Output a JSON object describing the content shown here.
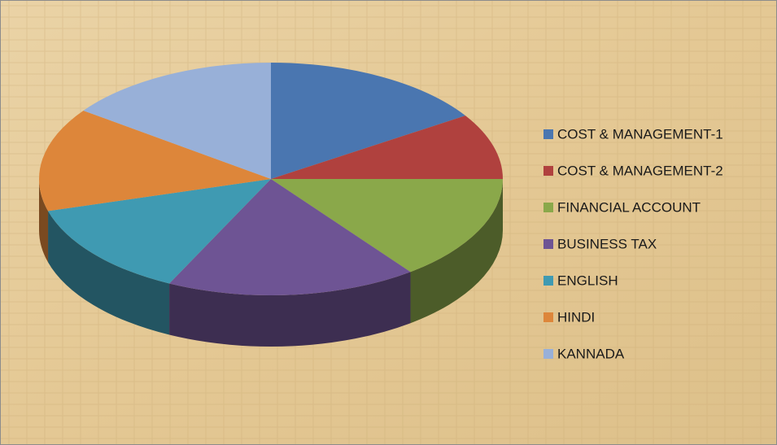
{
  "chart_data": {
    "type": "pie",
    "pie_style": "3d",
    "categories": [
      "COST & MANAGEMENT-1",
      "COST & MANAGEMENT-2",
      "FINANCIAL ACCOUNT",
      "BUSINESS TAX",
      "ENGLISH",
      "HINDI",
      "KANNADA"
    ],
    "values": [
      57,
      33,
      53,
      63,
      48,
      52,
      54
    ],
    "colors": [
      "#4a76b0",
      "#b0413e",
      "#8aa84a",
      "#6e5494",
      "#3f9ab2",
      "#dd863a",
      "#98b0d8"
    ],
    "legend": "right"
  }
}
